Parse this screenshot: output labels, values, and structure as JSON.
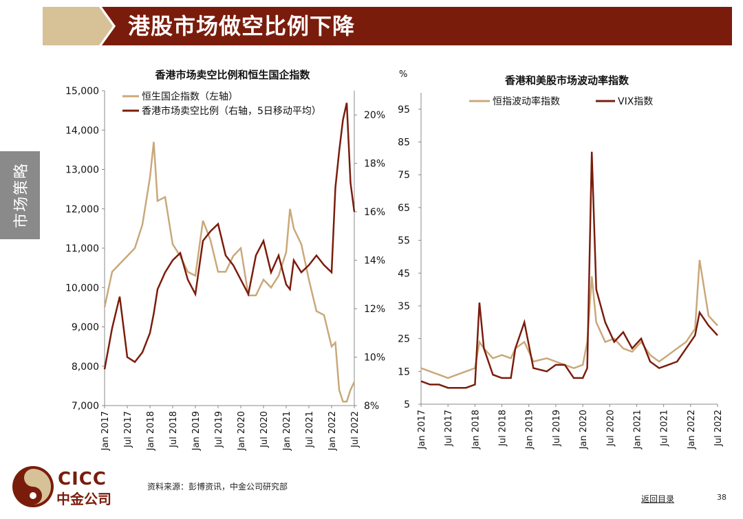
{
  "header": {
    "title": "港股市场做空比例下降"
  },
  "side_tab": {
    "label": "市场策略"
  },
  "footer": {
    "source": "资料来源：彭博资讯，中金公司研究部",
    "back_link": "返回目录",
    "page_number": "38",
    "logo_en": "CICC",
    "logo_cn": "中金公司"
  },
  "colors": {
    "brand_dark": "#7a1c0c",
    "brand_light": "#d7c197",
    "tan_series": "#c9a87a",
    "brown_series": "#7a1c0c"
  },
  "chart_data": [
    {
      "type": "line",
      "title": "香港市场卖空比例和恒生国企指数",
      "x_ticks": [
        "Jan 2017",
        "Jul 2017",
        "Jan 2018",
        "Jul 2018",
        "Jan 2019",
        "Jul 2019",
        "Jan 2020",
        "Jul 2020",
        "Jan 2021",
        "Jul 2021",
        "Jan 2022",
        "Jul 2022"
      ],
      "x": [
        "2017-01",
        "2017-03",
        "2017-05",
        "2017-07",
        "2017-09",
        "2017-11",
        "2018-01",
        "2018-02",
        "2018-03",
        "2018-05",
        "2018-07",
        "2018-09",
        "2018-11",
        "2019-01",
        "2019-03",
        "2019-05",
        "2019-07",
        "2019-09",
        "2019-11",
        "2020-01",
        "2020-03",
        "2020-05",
        "2020-07",
        "2020-09",
        "2020-11",
        "2021-01",
        "2021-02",
        "2021-03",
        "2021-05",
        "2021-07",
        "2021-09",
        "2021-11",
        "2022-01",
        "2022-02",
        "2022-03",
        "2022-04",
        "2022-05",
        "2022-06",
        "2022-07"
      ],
      "yleft": {
        "ylim": [
          7000,
          15000
        ],
        "ticks": [
          "7,000",
          "8,000",
          "9,000",
          "10,000",
          "11,000",
          "12,000",
          "13,000",
          "14,000",
          "15,000"
        ]
      },
      "yright": {
        "ylim": [
          8,
          21
        ],
        "ticks": [
          "8%",
          "10%",
          "12%",
          "14%",
          "16%",
          "18%",
          "20%"
        ]
      },
      "series": [
        {
          "name": "恒生国企指数（左轴）",
          "axis": "left",
          "values": [
            9500,
            10400,
            10600,
            10800,
            11000,
            11600,
            12800,
            13700,
            12200,
            12300,
            11100,
            10800,
            10400,
            10300,
            11700,
            11200,
            10400,
            10400,
            10800,
            11000,
            9800,
            9800,
            10200,
            10000,
            10300,
            10900,
            12000,
            11500,
            11100,
            10200,
            9400,
            9300,
            8500,
            8600,
            7400,
            7100,
            7100,
            7400,
            7600
          ]
        },
        {
          "name": "香港市场卖空比例（右轴，5日移动平均）",
          "axis": "right",
          "values": [
            9.5,
            11.2,
            12.5,
            10.0,
            9.8,
            10.2,
            11.0,
            11.8,
            12.8,
            13.5,
            14.0,
            14.3,
            13.2,
            12.6,
            14.8,
            15.2,
            15.5,
            14.2,
            13.8,
            13.2,
            12.6,
            14.2,
            14.8,
            13.5,
            14.2,
            13.0,
            12.8,
            14.0,
            13.5,
            13.8,
            14.2,
            13.8,
            13.5,
            17.0,
            18.5,
            19.8,
            20.5,
            17.2,
            16.0
          ]
        }
      ]
    },
    {
      "type": "line",
      "title": "香港和美股市场波动率指数",
      "ylabel": "%",
      "x_ticks": [
        "Jan 2017",
        "Jul 2017",
        "Jan 2018",
        "Jul 2018",
        "Jan 2019",
        "Jul 2019",
        "Jan 2020",
        "Jul 2020",
        "Jan 2021",
        "Jul 2021",
        "Jan 2022",
        "Jul 2022"
      ],
      "x": [
        "2017-01",
        "2017-03",
        "2017-05",
        "2017-07",
        "2017-09",
        "2017-11",
        "2018-01",
        "2018-02",
        "2018-03",
        "2018-05",
        "2018-07",
        "2018-09",
        "2018-10",
        "2018-12",
        "2019-02",
        "2019-05",
        "2019-07",
        "2019-09",
        "2019-11",
        "2020-01",
        "2020-02",
        "2020-03",
        "2020-04",
        "2020-06",
        "2020-08",
        "2020-10",
        "2020-12",
        "2021-02",
        "2021-04",
        "2021-06",
        "2021-08",
        "2021-10",
        "2021-12",
        "2022-02",
        "2022-03",
        "2022-05",
        "2022-07"
      ],
      "ylim": [
        5,
        100
      ],
      "ticks": [
        "5",
        "15",
        "25",
        "35",
        "45",
        "55",
        "65",
        "75",
        "85",
        "95"
      ],
      "series": [
        {
          "name": "恒指波动率指数",
          "values": [
            16,
            15,
            14,
            13,
            14,
            15,
            16,
            24,
            22,
            19,
            20,
            19,
            22,
            24,
            18,
            19,
            18,
            17,
            16,
            17,
            24,
            44,
            30,
            24,
            25,
            22,
            21,
            24,
            20,
            18,
            20,
            22,
            24,
            28,
            49,
            32,
            29
          ]
        },
        {
          "name": "VIX指数",
          "values": [
            12,
            11,
            11,
            10,
            10,
            10,
            11,
            36,
            22,
            14,
            13,
            13,
            22,
            30,
            16,
            15,
            17,
            17,
            13,
            13,
            16,
            82,
            40,
            30,
            24,
            27,
            22,
            25,
            18,
            16,
            17,
            18,
            22,
            26,
            33,
            29,
            26
          ]
        }
      ]
    }
  ]
}
